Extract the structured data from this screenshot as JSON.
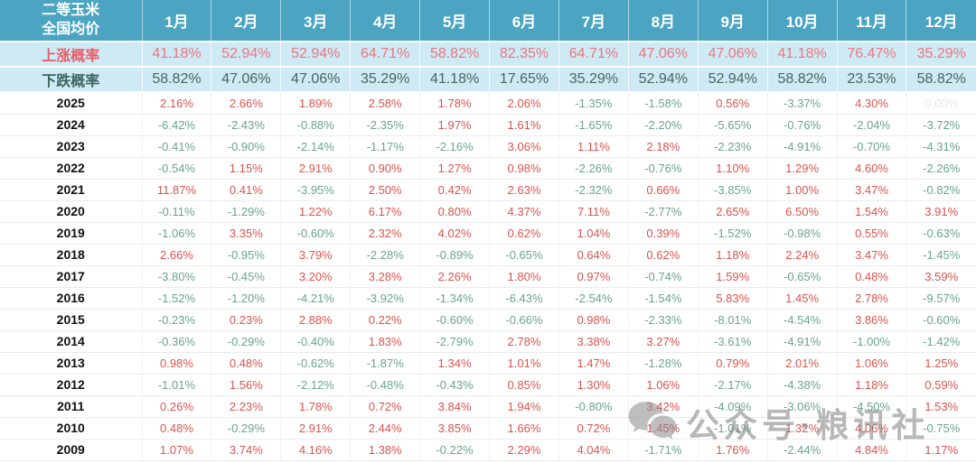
{
  "chart_data": {
    "type": "table",
    "title": "二等玉米全国均价",
    "title_lines": [
      "二等玉米",
      "全国均价"
    ],
    "columns": [
      "1月",
      "2月",
      "3月",
      "4月",
      "5月",
      "6月",
      "7月",
      "8月",
      "9月",
      "10月",
      "11月",
      "12月"
    ],
    "rise_probability": {
      "label": "上涨概率",
      "values": [
        "41.18%",
        "52.94%",
        "52.94%",
        "64.71%",
        "58.82%",
        "82.35%",
        "64.71%",
        "47.06%",
        "47.06%",
        "41.18%",
        "76.47%",
        "35.29%"
      ]
    },
    "fall_probability": {
      "label": "下跌概率",
      "values": [
        "58.82%",
        "47.06%",
        "47.06%",
        "35.29%",
        "41.18%",
        "17.65%",
        "35.29%",
        "52.94%",
        "52.94%",
        "58.82%",
        "23.53%",
        "58.82%"
      ]
    },
    "rows": [
      {
        "year": "2025",
        "values": [
          "2.16%",
          "2.66%",
          "1.89%",
          "2.58%",
          "1.78%",
          "2.06%",
          "-1.35%",
          "-1.58%",
          "0.56%",
          "-3.37%",
          "4.30%",
          "0.00%"
        ]
      },
      {
        "year": "2024",
        "values": [
          "-6.42%",
          "-2.43%",
          "-0.88%",
          "-2.35%",
          "1.97%",
          "1.61%",
          "-1.65%",
          "-2.20%",
          "-5.65%",
          "-0.76%",
          "-2.04%",
          "-3.72%"
        ]
      },
      {
        "year": "2023",
        "values": [
          "-0.41%",
          "-0.90%",
          "-2.14%",
          "-1.17%",
          "-2.16%",
          "3.06%",
          "1.11%",
          "2.18%",
          "-2.23%",
          "-4.91%",
          "-0.70%",
          "-4.31%"
        ]
      },
      {
        "year": "2022",
        "values": [
          "-0.54%",
          "1.15%",
          "2.91%",
          "0.90%",
          "1.27%",
          "0.98%",
          "-2.26%",
          "-0.76%",
          "1.10%",
          "1.29%",
          "4.60%",
          "-2.26%"
        ]
      },
      {
        "year": "2021",
        "values": [
          "11.87%",
          "0.41%",
          "-3.95%",
          "2.50%",
          "0.42%",
          "2.63%",
          "-2.32%",
          "0.66%",
          "-3.85%",
          "1.00%",
          "3.47%",
          "-0.82%"
        ]
      },
      {
        "year": "2020",
        "values": [
          "-0.11%",
          "-1.29%",
          "1.22%",
          "6.17%",
          "0.80%",
          "4.37%",
          "7.11%",
          "-2.77%",
          "2.65%",
          "6.50%",
          "1.54%",
          "3.91%"
        ]
      },
      {
        "year": "2019",
        "values": [
          "-1.06%",
          "3.35%",
          "-0.60%",
          "2.32%",
          "4.02%",
          "0.62%",
          "1.04%",
          "0.39%",
          "-1.52%",
          "-0.98%",
          "0.55%",
          "-0.63%"
        ]
      },
      {
        "year": "2018",
        "values": [
          "2.66%",
          "-0.95%",
          "3.79%",
          "-2.28%",
          "-0.89%",
          "-0.65%",
          "0.64%",
          "0.62%",
          "1.18%",
          "2.24%",
          "3.47%",
          "-1.45%"
        ]
      },
      {
        "year": "2017",
        "values": [
          "-3.80%",
          "-0.45%",
          "3.20%",
          "3.28%",
          "2.26%",
          "1.80%",
          "0.97%",
          "-0.74%",
          "1.59%",
          "-0.65%",
          "0.48%",
          "3.59%"
        ]
      },
      {
        "year": "2016",
        "values": [
          "-1.52%",
          "-1.20%",
          "-4.21%",
          "-3.92%",
          "-1.34%",
          "-6.43%",
          "-2.54%",
          "-1.54%",
          "5.83%",
          "1.45%",
          "2.78%",
          "-9.57%"
        ]
      },
      {
        "year": "2015",
        "values": [
          "-0.23%",
          "0.23%",
          "2.88%",
          "0.22%",
          "-0.60%",
          "-0.66%",
          "0.98%",
          "-2.33%",
          "-8.01%",
          "-4.54%",
          "3.86%",
          "-0.60%"
        ]
      },
      {
        "year": "2014",
        "values": [
          "-0.36%",
          "-0.29%",
          "-0.40%",
          "1.83%",
          "-2.79%",
          "2.78%",
          "3.38%",
          "3.27%",
          "-3.61%",
          "-4.91%",
          "-1.00%",
          "-1.42%"
        ]
      },
      {
        "year": "2013",
        "values": [
          "0.98%",
          "0.48%",
          "-0.62%",
          "-1.87%",
          "1.34%",
          "1.01%",
          "1.47%",
          "-1.28%",
          "0.79%",
          "2.01%",
          "1.06%",
          "1.25%"
        ]
      },
      {
        "year": "2012",
        "values": [
          "-1.01%",
          "1.56%",
          "-2.12%",
          "-0.48%",
          "-0.43%",
          "0.85%",
          "1.30%",
          "1.06%",
          "-2.17%",
          "-4.38%",
          "1.18%",
          "0.59%"
        ]
      },
      {
        "year": "2011",
        "values": [
          "0.26%",
          "2.23%",
          "1.78%",
          "0.72%",
          "3.84%",
          "1.94%",
          "-0.80%",
          "3.42%",
          "-4.09%",
          "-3.06%",
          "-4.50%",
          "1.53%"
        ]
      },
      {
        "year": "2010",
        "values": [
          "0.48%",
          "-0.29%",
          "2.91%",
          "2.44%",
          "3.85%",
          "1.66%",
          "0.72%",
          "1.45%",
          "-1.01%",
          "1.32%",
          "4.06%",
          "-0.75%"
        ]
      },
      {
        "year": "2009",
        "values": [
          "1.07%",
          "3.74%",
          "4.16%",
          "1.38%",
          "-0.22%",
          "2.29%",
          "4.04%",
          "-1.71%",
          "1.76%",
          "-2.44%",
          "4.84%",
          "1.17%"
        ]
      }
    ],
    "layout": {
      "grid": true,
      "positive_means_rise": true
    }
  },
  "watermark": {
    "text": "公众号·粮讯社"
  },
  "colors": {
    "header_bg": "#4BA5C2",
    "probability_row_bg": "#CDEAF5",
    "rise_label": "#E4606B",
    "fall_label": "#3E655D",
    "positive_value": "#D9544D",
    "negative_value": "#6AA48C",
    "faded_value": "#E2E6E9"
  }
}
